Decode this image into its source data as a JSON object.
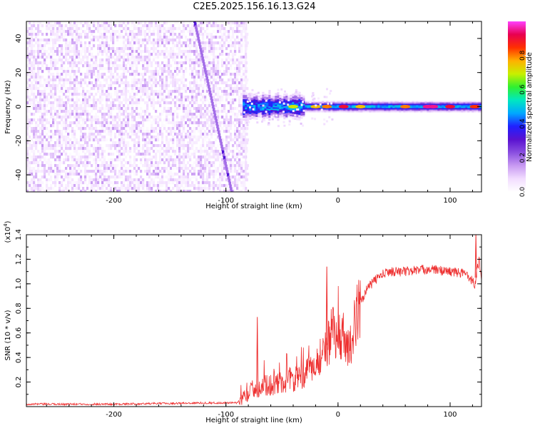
{
  "title": "C2E5.2025.156.16.13.G24",
  "colors": {
    "snr_line": "#ee3030",
    "axis": "#000000",
    "colormap": [
      "#ffffff",
      "#f2ddff",
      "#c89af2",
      "#8a4fe0",
      "#5a12d0",
      "#2020ff",
      "#00a8ff",
      "#00e8c0",
      "#30f030",
      "#c8f000",
      "#ffb000",
      "#ff3000",
      "#e80050",
      "#ff40ff"
    ]
  },
  "chart_data": [
    {
      "type": "heatmap",
      "xlabel": "Height of straight line (km)",
      "ylabel": "Frequency (Hz)",
      "xlim": [
        -278,
        128
      ],
      "ylim": [
        -50,
        50
      ],
      "xticks": [
        -200,
        -100,
        0,
        100
      ],
      "yticks": [
        -40,
        -20,
        0,
        20,
        40
      ],
      "colorbar": {
        "label": "Normalized spectral amplitude",
        "range": [
          0.0,
          1.0
        ],
        "ticks": [
          "0.0",
          "0.2",
          "0.4",
          "0.6",
          "0.8"
        ]
      },
      "regions": [
        {
          "name": "noise",
          "x_range": [
            -278,
            -83
          ],
          "y_range": [
            -50,
            50
          ],
          "amplitude": [
            0.02,
            0.15
          ]
        },
        {
          "name": "signal",
          "x_range": [
            -85,
            128
          ],
          "frequency_hz": 0,
          "amplitude": [
            0.3,
            0.9
          ]
        }
      ],
      "streak": {
        "x_from": -128,
        "x_to": -95,
        "f_from": 50,
        "f_to": -50,
        "amplitude": 0.2
      }
    },
    {
      "type": "line",
      "xlabel": "Height of straight line (km)",
      "ylabel": "SNR (10 * v/v)",
      "y_multiplier": "(x10",
      "y_multiplier_exp": "4",
      "y_multiplier_close": ")",
      "xlim": [
        -278,
        128
      ],
      "ylim": [
        0.0,
        1.4
      ],
      "xticks": [
        -200,
        -100,
        0,
        100
      ],
      "yticks": [
        0.2,
        0.4,
        0.6,
        0.8,
        1.0,
        1.2,
        1.4
      ],
      "profile": {
        "x": [
          -278,
          -200,
          -120,
          -90,
          -75,
          -60,
          -45,
          -30,
          -20,
          -10,
          0,
          5,
          10,
          18,
          25,
          35,
          45,
          60,
          80,
          100,
          115,
          122,
          126,
          128
        ],
        "y": [
          0.02,
          0.02,
          0.03,
          0.03,
          0.15,
          0.18,
          0.2,
          0.25,
          0.35,
          0.5,
          0.6,
          0.58,
          0.45,
          0.8,
          0.95,
          1.05,
          1.1,
          1.1,
          1.12,
          1.1,
          1.08,
          1.0,
          1.2,
          1.05
        ]
      },
      "peaks": [
        {
          "x": -72,
          "y": 0.73
        },
        {
          "x": -10,
          "y": 1.14
        },
        {
          "x": 123,
          "y": 1.4
        }
      ]
    }
  ]
}
